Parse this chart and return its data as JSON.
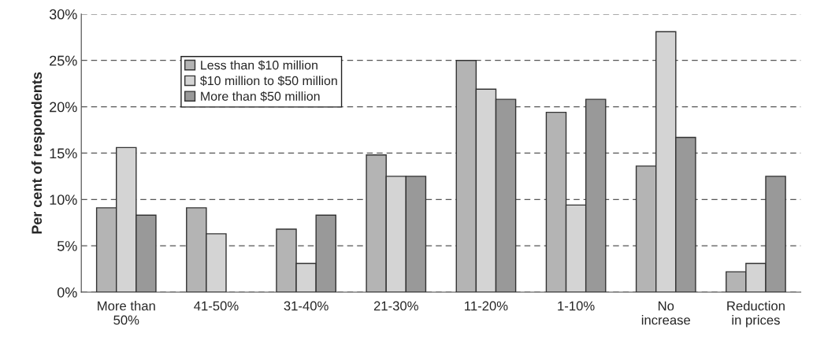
{
  "chart_data": {
    "type": "bar",
    "ylabel": "Per cent of respondents",
    "categories": [
      "More than\n50%",
      "41-50%",
      "31-40%",
      "21-30%",
      "11-20%",
      "1-10%",
      "No\nincrease",
      "Reduction\nin prices"
    ],
    "series": [
      {
        "name": "Less than $10 million",
        "color": "#b4b4b4",
        "values": [
          9.1,
          9.1,
          6.8,
          14.8,
          25.0,
          19.4,
          13.6,
          2.2
        ]
      },
      {
        "name": "$10 million to $50 million",
        "color": "#d4d4d4",
        "values": [
          15.6,
          6.3,
          3.1,
          12.5,
          21.9,
          9.4,
          28.1,
          3.1
        ]
      },
      {
        "name": "More than $50 million",
        "color": "#999999",
        "values": [
          8.3,
          null,
          8.3,
          12.5,
          20.8,
          20.8,
          16.7,
          12.5
        ]
      }
    ],
    "ylim": [
      0,
      30
    ],
    "yticks": [
      {
        "value": 0,
        "label": "0%"
      },
      {
        "value": 5,
        "label": "5%"
      },
      {
        "value": 10,
        "label": "10%"
      },
      {
        "value": 15,
        "label": "15%"
      },
      {
        "value": 20,
        "label": "20%"
      },
      {
        "value": 25,
        "label": "25%"
      },
      {
        "value": 30,
        "label": "30%"
      }
    ],
    "grid": "y",
    "legend": "top left"
  }
}
